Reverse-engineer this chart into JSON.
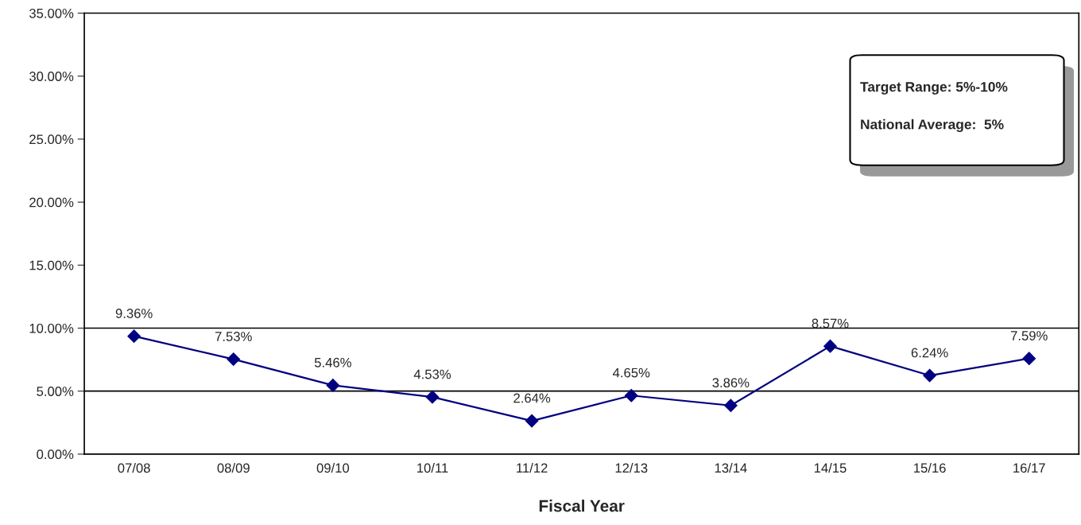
{
  "chart_data": {
    "type": "line",
    "xlabel": "Fiscal Year",
    "categories": [
      "07/08",
      "08/09",
      "09/10",
      "10/11",
      "11/12",
      "12/13",
      "13/14",
      "14/15",
      "15/16",
      "16/17"
    ],
    "series": [
      {
        "color": "#000080",
        "values": [
          9.36,
          7.53,
          5.46,
          4.53,
          2.64,
          4.65,
          3.86,
          8.57,
          6.24,
          7.59
        ],
        "value_labels": [
          "9.36%",
          "7.53%",
          "5.46%",
          "4.53%",
          "2.64%",
          "4.65%",
          "3.86%",
          "8.57%",
          "6.24%",
          "7.59%"
        ]
      }
    ],
    "marker": "diamond",
    "line_style": "solid",
    "grid": false,
    "legend": false,
    "ylim": [
      0,
      35
    ],
    "yticks": [
      {
        "value": 0,
        "label": "0.00%"
      },
      {
        "value": 5,
        "label": "5.00%"
      },
      {
        "value": 10,
        "label": "10.00%"
      },
      {
        "value": 15,
        "label": "15.00%"
      },
      {
        "value": 20,
        "label": "20.00%"
      },
      {
        "value": 25,
        "label": "25.00%"
      },
      {
        "value": 30,
        "label": "30.00%"
      },
      {
        "value": 35,
        "label": "35.00%"
      }
    ],
    "ref_lines": [
      {
        "axis": "y",
        "value": 10,
        "color": "#000000"
      },
      {
        "axis": "y",
        "value": 5,
        "color": "#000000"
      }
    ],
    "annotations": [
      "Target Range: 5%-10%",
      "National Average:  5%"
    ]
  }
}
